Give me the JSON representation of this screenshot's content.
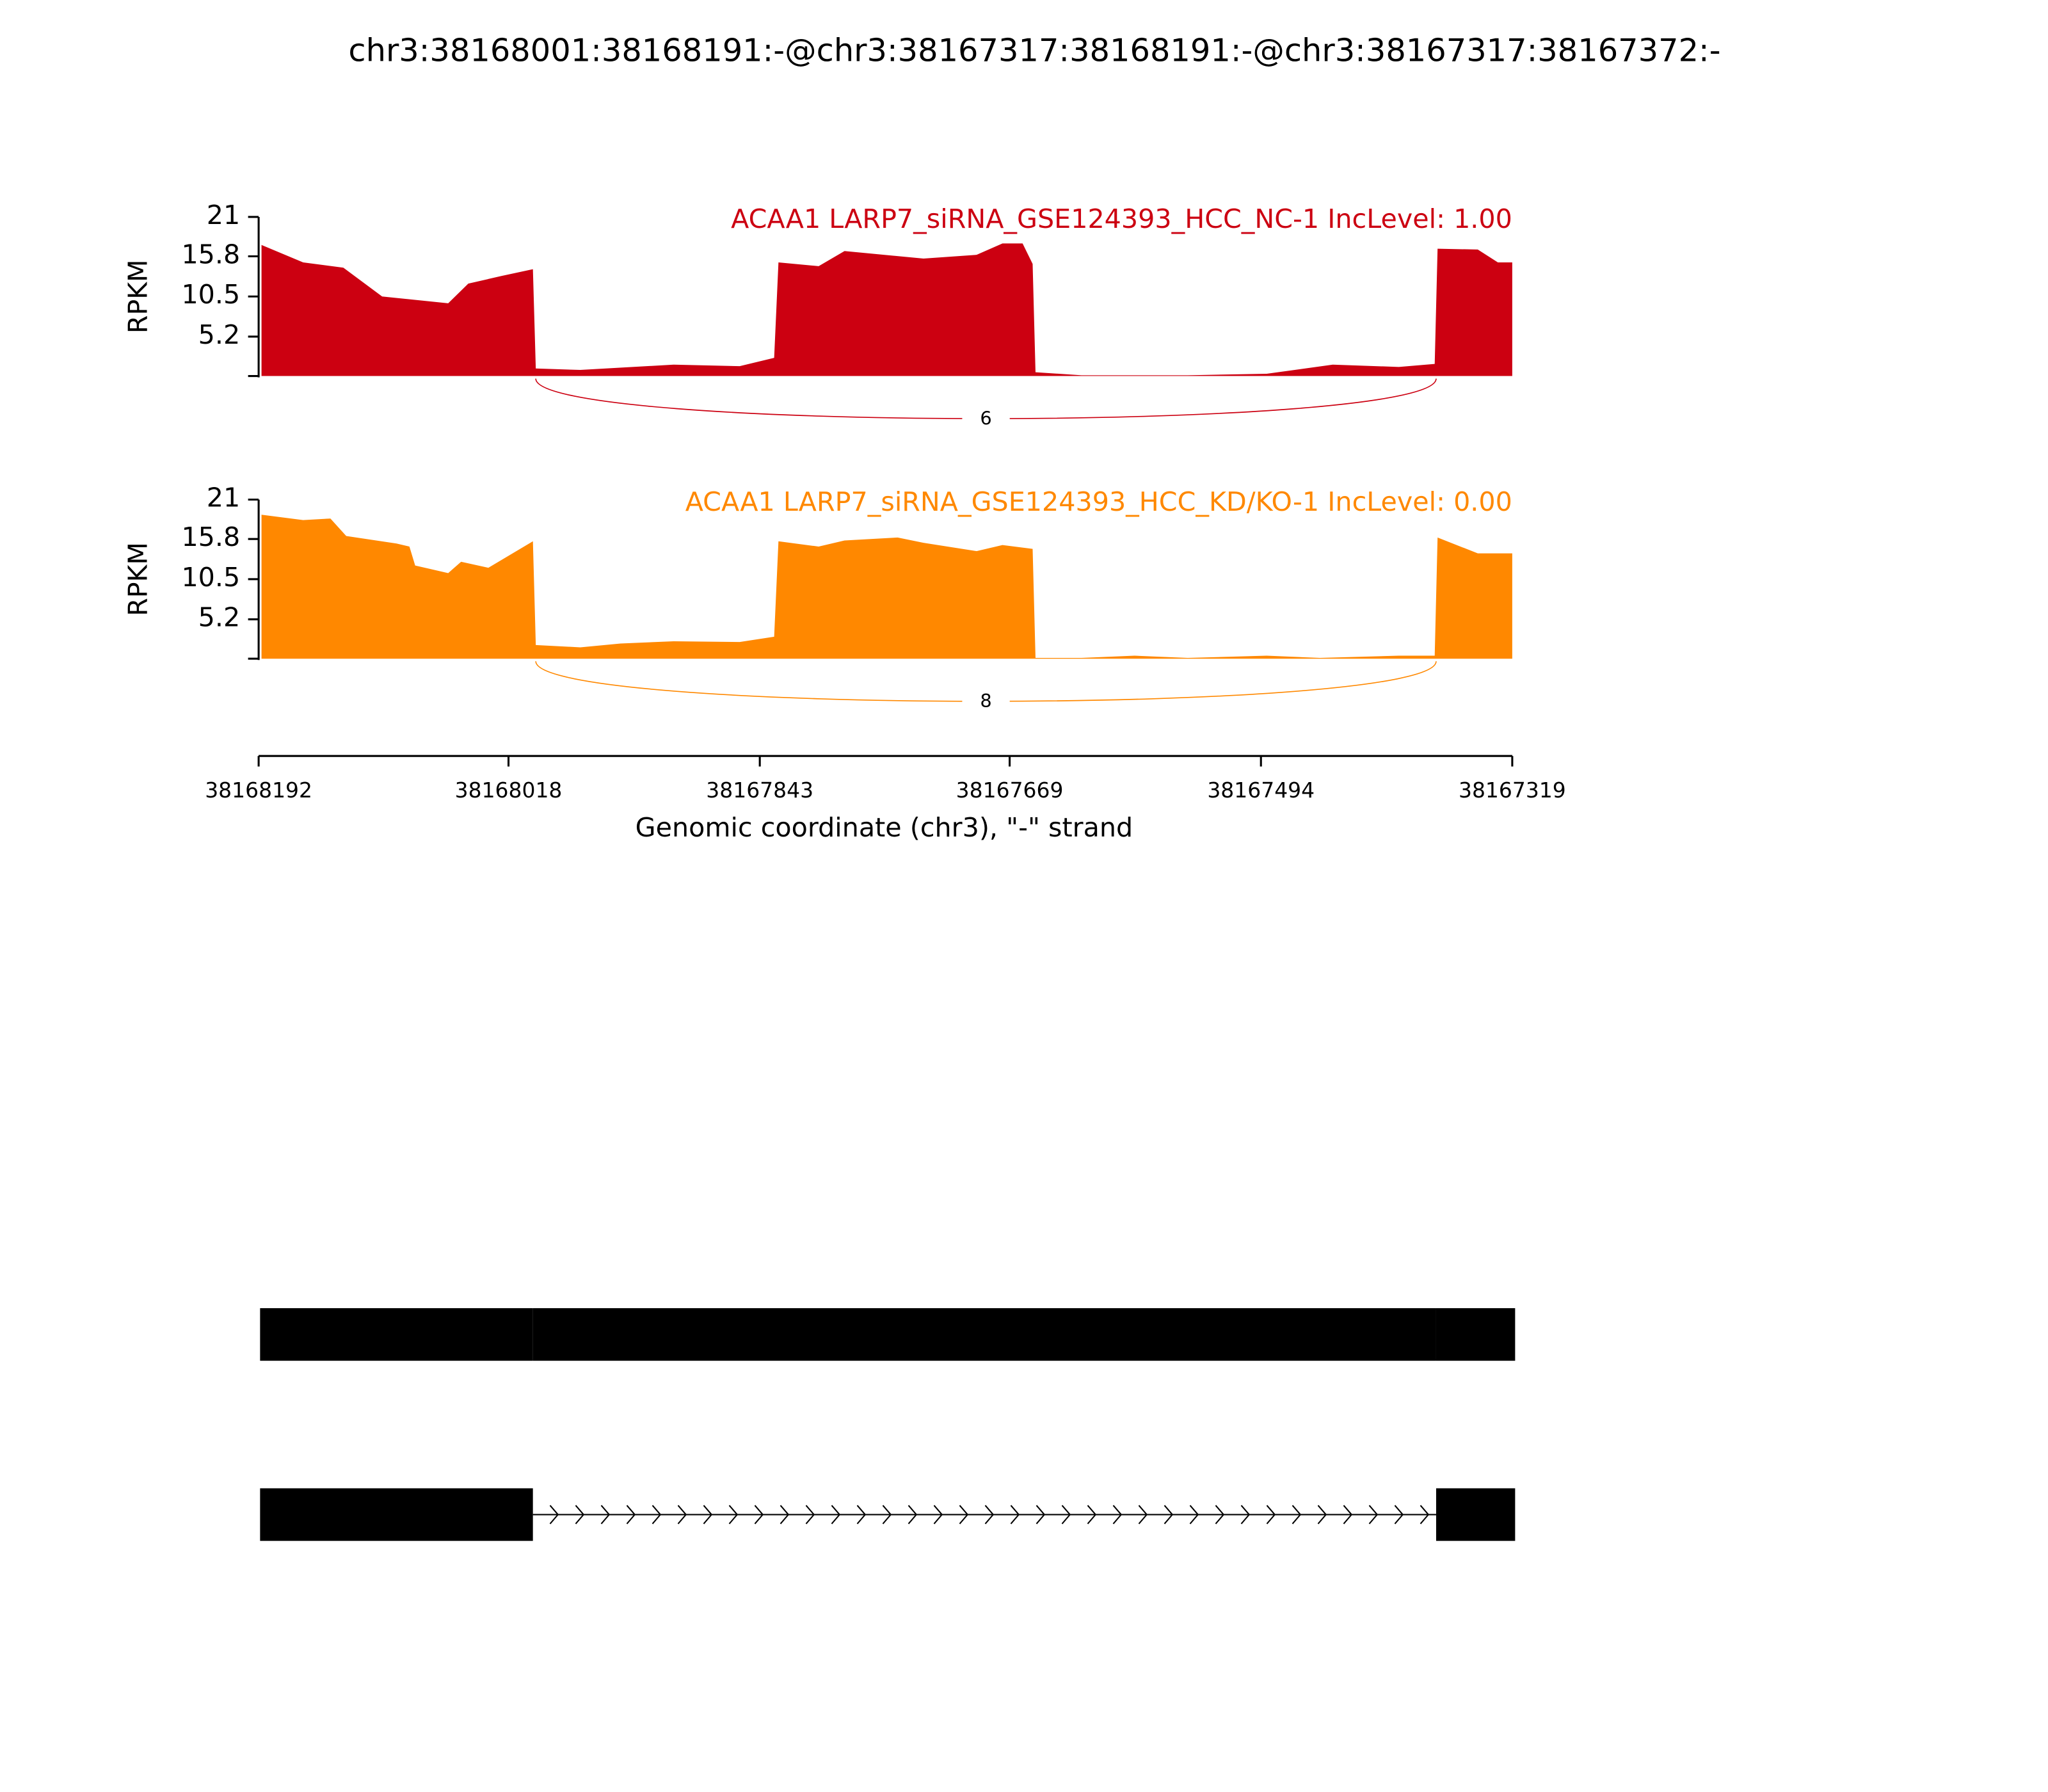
{
  "chart_data": {
    "type": "sashimi",
    "title": "chr3:38168001:38168191:-@chr3:38167317:38168191:-@chr3:38167317:38167372:-",
    "ylabel": "RPKM",
    "xlabel": "Genomic coordinate (chr3), \"-\" strand",
    "xlim": [
      38168192,
      38167319
    ],
    "xticks": [
      38168192,
      38168018,
      38167843,
      38167669,
      38167494,
      38167319
    ],
    "ylim": [
      0,
      21
    ],
    "yticks": [
      5.2,
      10.5,
      15.8,
      21
    ],
    "series": [
      {
        "name": "ACAA1 LARP7_siRNA_GSE124393_HCC_NC-1 IncLevel: 1.00",
        "color": "#cc0011",
        "x": [
          38168190,
          38168161,
          38168133,
          38168106,
          38168060,
          38168046,
          38168023,
          38168001,
          38167999,
          38167968,
          38167903,
          38167857,
          38167833,
          38167830,
          38167802,
          38167784,
          38167729,
          38167692,
          38167674,
          38167660,
          38167653,
          38167651,
          38167619,
          38167545,
          38167490,
          38167444,
          38167398,
          38167373,
          38167371,
          38167343,
          38167329,
          38167319
        ],
        "values": [
          17.3,
          15.0,
          14.3,
          10.5,
          9.6,
          12.2,
          13.2,
          14.1,
          1.0,
          0.8,
          1.5,
          1.3,
          2.4,
          15.0,
          14.5,
          16.5,
          15.5,
          16.0,
          17.5,
          17.5,
          14.8,
          0.5,
          0.1,
          0.1,
          0.3,
          1.5,
          1.2,
          1.6,
          16.8,
          16.7,
          15.0,
          15.0
        ],
        "junction": {
          "start": 38167999,
          "end": 38167372,
          "count": 6
        }
      },
      {
        "name": "ACAA1 LARP7_siRNA_GSE124393_HCC_KD/KO-1 IncLevel: 0.00",
        "color": "#ff8800",
        "x": [
          38168190,
          38168161,
          38168142,
          38168131,
          38168096,
          38168087,
          38168083,
          38168060,
          38168051,
          38168032,
          38168001,
          38167999,
          38167968,
          38167940,
          38167903,
          38167857,
          38167833,
          38167830,
          38167802,
          38167784,
          38167747,
          38167729,
          38167692,
          38167674,
          38167653,
          38167651,
          38167619,
          38167582,
          38167545,
          38167490,
          38167453,
          38167398,
          38167373,
          38167371,
          38167343,
          38167319
        ],
        "values": [
          19.0,
          18.3,
          18.5,
          16.2,
          15.2,
          14.8,
          12.3,
          11.3,
          12.8,
          12.0,
          15.5,
          1.8,
          1.5,
          2.0,
          2.3,
          2.2,
          2.9,
          15.5,
          14.8,
          15.6,
          16.0,
          15.3,
          14.2,
          15.0,
          14.5,
          0.1,
          0.1,
          0.4,
          0.1,
          0.4,
          0.1,
          0.4,
          0.4,
          16.0,
          13.9,
          13.9
        ],
        "junction": {
          "start": 38167999,
          "end": 38167372,
          "count": 8
        }
      }
    ],
    "transcripts": [
      {
        "exons": [
          [
            38168191,
            38168001
          ],
          [
            38168001,
            38167372
          ],
          [
            38167372,
            38167317
          ]
        ]
      },
      {
        "exons": [
          [
            38168191,
            38168001
          ],
          [
            38167372,
            38167317
          ]
        ]
      }
    ]
  }
}
